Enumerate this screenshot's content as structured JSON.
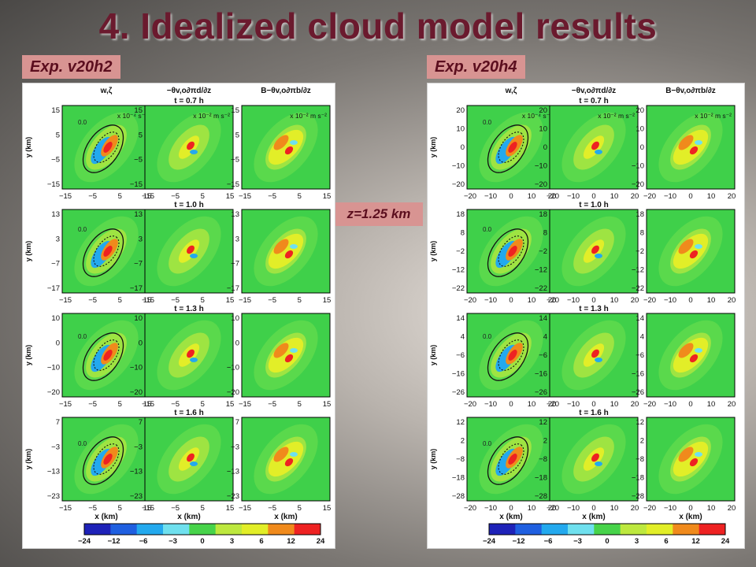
{
  "title": "4. Idealized cloud model results",
  "level_label": "z=1.25 km",
  "experiments": [
    {
      "name": "Exp. v20h2",
      "row_times": [
        "t = 0.7 h",
        "t = 1.0 h",
        "t = 1.3 h",
        "t = 1.6 h"
      ],
      "y_ticks": [
        [
          "15",
          "5",
          "−5",
          "−15"
        ],
        [
          "13",
          "3",
          "−7",
          "−17"
        ],
        [
          "10",
          "0",
          "−10",
          "−20"
        ],
        [
          "7",
          "−3",
          "−13",
          "−23"
        ]
      ],
      "x_ticks": [
        "−15",
        "−5",
        "5",
        "15"
      ]
    },
    {
      "name": "Exp. v20h4",
      "row_times": [
        "t = 0.7 h",
        "t = 1.0 h",
        "t = 1.3 h",
        "t = 1.6 h"
      ],
      "y_ticks": [
        [
          "20",
          "10",
          "0",
          "−10",
          "−20"
        ],
        [
          "18",
          "8",
          "−2",
          "−12",
          "−22"
        ],
        [
          "14",
          "4",
          "−6",
          "−16",
          "−26"
        ],
        [
          "12",
          "2",
          "−8",
          "−18",
          "−28"
        ]
      ],
      "x_ticks": [
        "−20",
        "−10",
        "0",
        "10",
        "20"
      ]
    }
  ],
  "column_titles": [
    "w,ζ",
    "−θv,o∂πd/∂z",
    "B−θv,o∂πb/∂z"
  ],
  "unit_labels": [
    "x 10⁻⁴ s⁻¹",
    "x 10⁻² m s⁻²",
    "x 10⁻² m s⁻²"
  ],
  "contour_labels": [
    "0.0"
  ],
  "axis_x_label": "x (km)",
  "axis_y_label": "y (km)",
  "colorbar": {
    "ticks": [
      "−24",
      "−12",
      "−6",
      "−3",
      "0",
      "3",
      "6",
      "12",
      "24"
    ],
    "colors": [
      "#1e22b8",
      "#1f5fe0",
      "#23a9ee",
      "#6fe0ee",
      "#47d34a",
      "#bde83e",
      "#e2ee28",
      "#f08a1c",
      "#ee2222"
    ]
  }
}
